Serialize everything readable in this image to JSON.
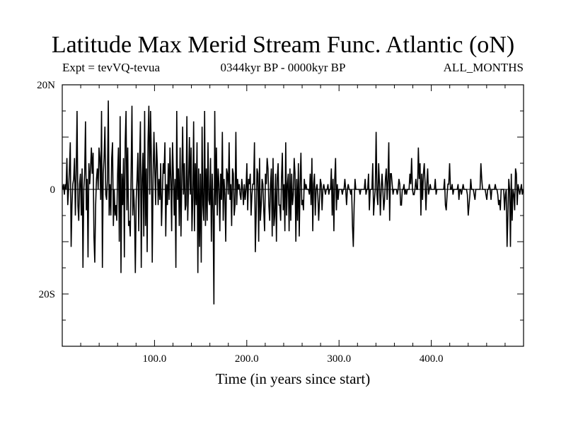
{
  "chart_data": {
    "type": "line",
    "title": "Latitude Max Merid Stream Func. Atlantic (oN)",
    "subtitle_left": "Expt = tevVQ-tevua",
    "subtitle_center": "0344kyr BP - 0000kyr BP",
    "subtitle_right": "ALL_MONTHS",
    "xlabel": "Time (in years since start)",
    "ylabel": "",
    "xlim": [
      0,
      500
    ],
    "ylim": [
      -30,
      20
    ],
    "x_ticks": [
      {
        "value": 100,
        "label": "100.0"
      },
      {
        "value": 200,
        "label": "200.0"
      },
      {
        "value": 300,
        "label": "300.0"
      },
      {
        "value": 400,
        "label": "400.0"
      }
    ],
    "y_ticks": [
      {
        "value": 20,
        "label": "20N"
      },
      {
        "value": 0,
        "label": "0"
      },
      {
        "value": -20,
        "label": "20S"
      }
    ],
    "grid": false,
    "series": [
      {
        "values": [
          0,
          1,
          -1,
          1,
          0,
          6,
          -3,
          0,
          4,
          9,
          -11,
          -3,
          1,
          2,
          6,
          -5,
          3,
          15,
          -3,
          -6,
          1,
          3,
          -5,
          4,
          -15,
          0,
          3,
          13,
          -4,
          2,
          -13,
          5,
          1,
          4,
          8,
          3,
          7,
          -9,
          -14,
          -3,
          2,
          4,
          0,
          8,
          6,
          -2,
          15,
          -15,
          3,
          6,
          12,
          -1,
          -2,
          2,
          17,
          -5,
          1,
          -5,
          6,
          9,
          -7,
          0,
          -5,
          -3,
          -6,
          3,
          8,
          -10,
          14,
          -16,
          3,
          -3,
          6,
          -13,
          9,
          15,
          -4,
          8,
          -7,
          -6,
          -9,
          3,
          16,
          -5,
          0,
          -4,
          -16,
          -2,
          2,
          7,
          -8,
          5,
          13,
          -15,
          2,
          7,
          -9,
          15,
          -7,
          4,
          -12,
          9,
          16,
          -1,
          15,
          6,
          -14,
          2,
          11,
          4,
          -3,
          9,
          5,
          -3,
          2,
          -2,
          5,
          -7,
          -1,
          5,
          3,
          9,
          -9,
          1,
          -3,
          5,
          -2,
          8,
          2,
          -8,
          9,
          3,
          -5,
          2,
          -15,
          15,
          -2,
          4,
          -7,
          8,
          -9,
          2,
          12,
          -1,
          5,
          -4,
          -3,
          14,
          -6,
          1,
          10,
          -1,
          8,
          -8,
          -2,
          13,
          -8,
          5,
          -3,
          9,
          -16,
          4,
          -11,
          3,
          -14,
          12,
          -3,
          -6,
          15,
          -7,
          4,
          -6,
          9,
          -2,
          -3,
          6,
          -10,
          3,
          -4,
          -22,
          15,
          -3,
          8,
          -5,
          4,
          1,
          -8,
          3,
          -2,
          11,
          -6,
          2,
          -1,
          -10,
          4,
          3,
          -1,
          9,
          -2,
          1,
          -7,
          4,
          3,
          -5,
          -3,
          11,
          -3,
          2,
          0,
          1,
          -1,
          -2,
          2,
          0,
          -3,
          1,
          -2,
          0,
          5,
          -4,
          2,
          1,
          3,
          -5,
          -1,
          1,
          1,
          9,
          -12,
          -5,
          4,
          3,
          -10,
          6,
          -6,
          -3,
          2,
          1,
          -4,
          -8,
          3,
          1,
          6,
          4,
          -3,
          -6,
          1,
          4,
          -9,
          6,
          -7,
          -5,
          3,
          -10,
          2,
          5,
          -3,
          -3,
          -6,
          2,
          7,
          -4,
          1,
          -8,
          9,
          -5,
          1,
          3,
          -8,
          4,
          -6,
          3,
          -3,
          -1,
          6,
          3,
          -10,
          2,
          -6,
          5,
          -9,
          1,
          7,
          -3,
          -2,
          -4,
          2,
          0,
          1,
          0,
          0,
          0,
          -1,
          3,
          -3,
          6,
          -8,
          1,
          3,
          -5,
          0,
          1,
          -1,
          -6,
          -2,
          2,
          1,
          -4,
          0,
          1,
          0,
          -1,
          0,
          0,
          1,
          -1,
          0,
          0,
          4,
          -5,
          2,
          -8,
          2,
          6,
          -4,
          1,
          -2,
          0,
          0,
          0,
          0,
          -1,
          0,
          0,
          2,
          0,
          -3,
          0,
          1,
          0,
          0,
          -1,
          0,
          -7,
          -11,
          -3,
          2,
          0,
          0,
          0,
          0,
          0,
          -1,
          0,
          0,
          0,
          0,
          0,
          2,
          -1,
          0,
          0,
          3,
          -4,
          0,
          0,
          0,
          5,
          -5,
          -2,
          0,
          11,
          -1,
          -3,
          5,
          1,
          -5,
          0,
          3,
          0,
          -4,
          -2,
          2,
          4,
          -2,
          2,
          9,
          -6,
          3,
          3,
          1,
          -1,
          0,
          0,
          0,
          0,
          -1,
          0,
          2,
          1,
          -3,
          -3,
          0,
          0,
          1,
          -1,
          0,
          -1,
          0,
          0,
          0,
          3,
          1,
          6,
          0,
          -1,
          -1,
          0,
          2,
          0,
          0,
          8,
          2,
          5,
          -5,
          3,
          -2,
          3,
          5,
          1,
          -4,
          1,
          4,
          -1,
          0,
          1,
          0,
          0,
          0,
          0,
          0,
          2,
          -1,
          0,
          0,
          0,
          0,
          0,
          0,
          0,
          0,
          0,
          2,
          -3,
          -4,
          -1,
          1,
          1,
          5,
          0,
          0,
          1,
          -1,
          0,
          0,
          0,
          0,
          0,
          1,
          -2,
          0,
          0,
          -1,
          0,
          1,
          0,
          0,
          0,
          0,
          -1,
          -5,
          -3,
          -1,
          2,
          0,
          0,
          0,
          -1,
          -2,
          0,
          0,
          0,
          0,
          0,
          0,
          5,
          2,
          0,
          0,
          0,
          0,
          -1,
          -2,
          0,
          0,
          1,
          0,
          -2,
          0,
          0,
          0,
          0,
          1,
          0,
          0,
          -1,
          -3,
          -2,
          -4,
          0,
          0,
          0,
          0,
          -4,
          -1,
          0,
          -11,
          -5,
          2,
          0,
          -11,
          3,
          -6,
          0,
          -1,
          -4,
          4,
          3,
          -3,
          1,
          0,
          -1,
          0,
          1,
          -1,
          0
        ]
      }
    ]
  }
}
